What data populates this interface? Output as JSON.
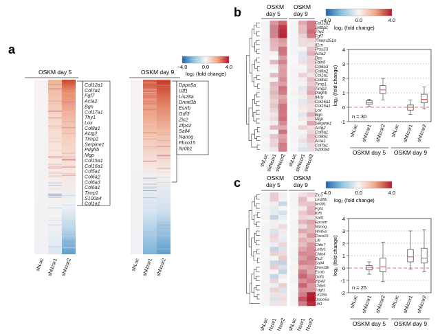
{
  "panels": {
    "a": {
      "label": "a",
      "left_title": "OSKM day 5",
      "right_title": "OSKM day 9",
      "columns": [
        "shLuc",
        "shNcor1",
        "shNcor2"
      ],
      "left_genes": [
        "Col12a1",
        "Col7a1",
        "Fgf7",
        "Acta2",
        "Bgn",
        "Col17a1",
        "Thy1",
        "Lox",
        "Col8a1",
        "Actg2",
        "Timp2",
        "Serpine1",
        "Pdgfrb",
        "Mgp",
        "Col15a1",
        "Col16a1",
        "Col5a1",
        "Col6a2",
        "Col6a3",
        "Col6a1",
        "Timp1",
        "S100a4",
        "Col1a1"
      ],
      "right_genes": [
        "Dppa5a",
        "Utf1",
        "Lin28a",
        "Dnmt3b",
        "Esrrb",
        "Gdf3",
        "Zic2",
        "Zfp42",
        "Sall4",
        "Nanog",
        "Fbxo15",
        "Nr0b1"
      ],
      "colorbar": {
        "ticks": [
          "−4.0",
          "0.0",
          "4.0"
        ],
        "label": "log₂ (fold change)"
      }
    },
    "b": {
      "label": "b",
      "titles": [
        [
          "OSKM",
          "day 5"
        ],
        [
          "OSKM",
          "day 9"
        ]
      ],
      "columns": [
        "shLuc",
        "shNcor1",
        "shNcor2",
        "shLuc",
        "shNcor1",
        "shNcor2"
      ],
      "genes": [
        "Col12a1",
        "Setbp1",
        "Thy1",
        "Fgf7",
        "Tmem151a",
        "Il1rn",
        "Prss23",
        "Acta2",
        "Des",
        "Fbln5",
        "Col6a3",
        "Col6a2",
        "Col1a1",
        "Col8a1",
        "Timp1",
        "Timp2",
        "Pdgfrb",
        "Il4ra",
        "Col16a1",
        "Col15a1",
        "Lox",
        "Bgn",
        "Mgp",
        "Serpine1",
        "Actg2",
        "Col5a1",
        "Col8a1",
        "Acta1",
        "Col7a1",
        "S100a4"
      ],
      "colorbar": {
        "ticks": [
          "−4.0",
          "0.0",
          "4.0"
        ],
        "label": "log₂ (fold change)"
      },
      "chart_data": {
        "type": "box",
        "ylabel": "log₂ (fold change)",
        "ylim": [
          -1,
          4
        ],
        "yticks": [
          -1,
          0,
          1,
          2,
          3,
          4
        ],
        "n_label": "n = 30",
        "categories": [
          "shLuc",
          "shNcor1",
          "shNcor2",
          "shLuc",
          "shNcor1",
          "shNcor2"
        ],
        "groups": [
          {
            "name": "OSKM day 5",
            "span": [
              0,
              2
            ]
          },
          {
            "name": "OSKM day 9",
            "span": [
              3,
              5
            ]
          }
        ],
        "boxes": [
          {
            "min": 0,
            "q1": 0,
            "median": 0,
            "q3": 0,
            "max": 0
          },
          {
            "min": 0.05,
            "q1": 0.2,
            "median": 0.3,
            "q3": 0.45,
            "max": 0.55
          },
          {
            "min": 0.5,
            "q1": 0.95,
            "median": 1.2,
            "q3": 1.5,
            "max": 2.0
          },
          {
            "min": 0,
            "q1": 0,
            "median": 0,
            "q3": 0,
            "max": 0
          },
          {
            "min": -0.5,
            "q1": -0.2,
            "median": 0.0,
            "q3": 0.15,
            "max": 0.5
          },
          {
            "min": -0.1,
            "q1": 0.3,
            "median": 0.55,
            "q3": 0.9,
            "max": 1.4
          }
        ]
      }
    },
    "c": {
      "label": "c",
      "titles": [
        [
          "OSKM",
          "day 5"
        ],
        [
          "OSKM",
          "day 9"
        ]
      ],
      "columns": [
        "shLuc",
        "shNcor1",
        "shNcor2",
        "shLuc",
        "shNcor1",
        "shNcor2"
      ],
      "genes": [
        "Zic3",
        "Lin28b",
        "Nr0b1",
        "Fgf4",
        "Klf5",
        "Sall1",
        "Epcam",
        "Nanog",
        "Wnt5a",
        "Fbxo15",
        "Lifr",
        "Cldn7",
        "Lefty1",
        "Cldn4",
        "Zic2",
        "Sall4",
        "Dnmt3b",
        "Esrrb",
        "Gdf3",
        "Zfp42",
        "Cldn6",
        "Tdgf1",
        "Lin28a",
        "Dppa5a",
        "Utf1"
      ],
      "colorbar": {
        "ticks": [
          "−4.0",
          "0.0",
          "4.0"
        ],
        "label": "log₂ (fold change)"
      },
      "chart_data": {
        "type": "box",
        "ylabel": "log₂ (fold change)",
        "ylim": [
          -2,
          4
        ],
        "yticks": [
          -2,
          -1,
          0,
          1,
          2,
          3,
          4
        ],
        "n_label": "n = 25",
        "categories": [
          "shLuc",
          "shNcor1",
          "shNcor2",
          "shLuc",
          "shNcor1",
          "shNcor2"
        ],
        "groups": [
          {
            "name": "OSKM day 5",
            "span": [
              0,
              2
            ]
          },
          {
            "name": "OSKM day 9",
            "span": [
              3,
              5
            ]
          }
        ],
        "boxes": [
          {
            "min": 0,
            "q1": 0,
            "median": 0,
            "q3": 0,
            "max": 0
          },
          {
            "min": -0.5,
            "q1": -0.15,
            "median": 0.05,
            "q3": 0.2,
            "max": 0.5
          },
          {
            "min": -1.1,
            "q1": -0.3,
            "median": 0.1,
            "q3": 0.8,
            "max": 2.1
          },
          {
            "min": 0,
            "q1": 0,
            "median": 0,
            "q3": 0,
            "max": 0
          },
          {
            "min": -0.1,
            "q1": 0.5,
            "median": 0.9,
            "q3": 1.5,
            "max": 3.0
          },
          {
            "min": -0.3,
            "q1": 0.4,
            "median": 0.8,
            "q3": 1.6,
            "max": 3.1
          }
        ]
      }
    }
  }
}
